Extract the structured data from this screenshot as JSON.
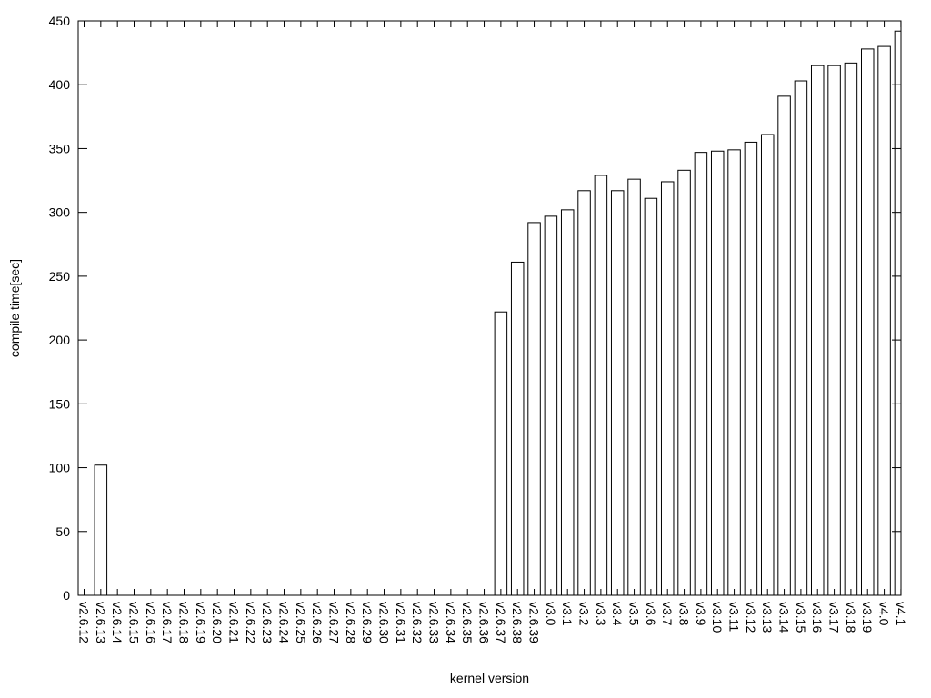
{
  "chart_data": {
    "type": "bar",
    "title": "",
    "xlabel": "kernel version",
    "ylabel": "compile time[sec]",
    "categories": [
      "v2.6.12",
      "v2.6.13",
      "v2.6.14",
      "v2.6.15",
      "v2.6.16",
      "v2.6.17",
      "v2.6.18",
      "v2.6.19",
      "v2.6.20",
      "v2.6.21",
      "v2.6.22",
      "v2.6.23",
      "v2.6.24",
      "v2.6.25",
      "v2.6.26",
      "v2.6.27",
      "v2.6.28",
      "v2.6.29",
      "v2.6.30",
      "v2.6.31",
      "v2.6.32",
      "v2.6.33",
      "v2.6.34",
      "v2.6.35",
      "v2.6.36",
      "v2.6.37",
      "v2.6.38",
      "v2.6.39",
      "v3.0",
      "v3.1",
      "v3.2",
      "v3.3",
      "v3.4",
      "v3.5",
      "v3.6",
      "v3.7",
      "v3.8",
      "v3.9",
      "v3.10",
      "v3.11",
      "v3.12",
      "v3.13",
      "v3.14",
      "v3.15",
      "v3.16",
      "v3.17",
      "v3.18",
      "v3.19",
      "v4.0",
      "v4.1"
    ],
    "values": [
      0,
      102,
      0,
      0,
      0,
      0,
      0,
      0,
      0,
      0,
      0,
      0,
      0,
      0,
      0,
      0,
      0,
      0,
      0,
      0,
      0,
      0,
      0,
      0,
      0,
      222,
      261,
      292,
      297,
      302,
      317,
      329,
      317,
      326,
      311,
      324,
      333,
      347,
      348,
      349,
      355,
      361,
      391,
      403,
      415,
      415,
      417,
      428,
      430,
      442
    ],
    "ylim": [
      0,
      450
    ],
    "yticks": [
      0,
      50,
      100,
      150,
      200,
      250,
      300,
      350,
      400,
      450
    ],
    "grid": false,
    "legend": "none",
    "bar_style": "outlined-unfilled",
    "colors": {
      "background": "#ffffff",
      "foreground": "#000000",
      "bar_stroke": "#000000",
      "bar_fill": "none"
    }
  }
}
